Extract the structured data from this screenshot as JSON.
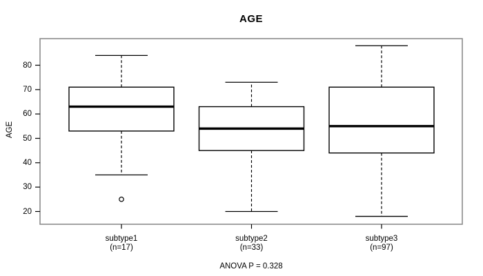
{
  "title": "AGE",
  "y_axis": {
    "label": "AGE",
    "ticks": [
      20,
      30,
      40,
      50,
      60,
      70,
      80
    ]
  },
  "footer": "ANOVA P = 0.328",
  "colors": {
    "frame": "#8a8a8a",
    "box_border": "#000000",
    "median": "#000000",
    "whisker": "#000000",
    "text": "#000000",
    "background": "#ffffff"
  },
  "chart_data": {
    "type": "boxplot",
    "title": "AGE",
    "xlabel": "",
    "ylabel": "AGE",
    "yticks": [
      20,
      30,
      40,
      50,
      60,
      70,
      80
    ],
    "ylim": [
      14.8,
      90.9
    ],
    "grid": false,
    "legend": false,
    "annotation": "ANOVA P = 0.328",
    "groups": [
      {
        "label": "subtype1",
        "sublabel": "(n=17)",
        "n": 17,
        "whisker_low": 35,
        "q1": 53,
        "median": 63,
        "q3": 71,
        "whisker_high": 84,
        "outliers": [
          25
        ]
      },
      {
        "label": "subtype2",
        "sublabel": "(n=33)",
        "n": 33,
        "whisker_low": 20,
        "q1": 45,
        "median": 54,
        "q3": 63,
        "whisker_high": 73,
        "outliers": []
      },
      {
        "label": "subtype3",
        "sublabel": "(n=97)",
        "n": 97,
        "whisker_low": 18,
        "q1": 44,
        "median": 55,
        "q3": 71,
        "whisker_high": 88,
        "outliers": []
      }
    ]
  }
}
